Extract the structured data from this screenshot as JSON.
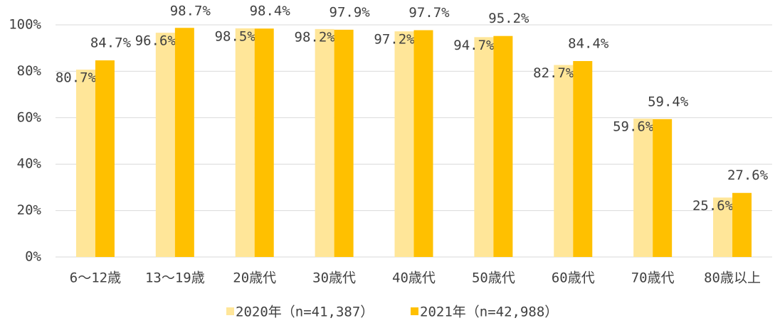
{
  "chart_data": {
    "type": "bar",
    "categories": [
      "6～12歳",
      "13～19歳",
      "20歳代",
      "30歳代",
      "40歳代",
      "50歳代",
      "60歳代",
      "70歳代",
      "80歳以上"
    ],
    "series": [
      {
        "name": "2020年（n=41,387）",
        "color": "#ffe699",
        "values": [
          80.7,
          96.6,
          98.5,
          98.2,
          97.2,
          94.7,
          82.7,
          59.6,
          25.6
        ],
        "value_labels": [
          "80.7%",
          "96.6%",
          "98.5%",
          "98.2%",
          "97.2%",
          "94.7%",
          "82.7%",
          "59.6%",
          "25.6%"
        ]
      },
      {
        "name": "2021年（n=42,988）",
        "color": "#ffc000",
        "values": [
          84.7,
          98.7,
          98.4,
          97.9,
          97.7,
          95.2,
          84.4,
          59.4,
          27.6
        ],
        "value_labels": [
          "84.7%",
          "98.7%",
          "98.4%",
          "97.9%",
          "97.7%",
          "95.2%",
          "84.4%",
          "59.4%",
          "27.6%"
        ]
      }
    ],
    "ylim": [
      0,
      100
    ],
    "yticks": [
      {
        "value": 0,
        "label": "0%"
      },
      {
        "value": 20,
        "label": "20%"
      },
      {
        "value": 40,
        "label": "40%"
      },
      {
        "value": 60,
        "label": "60%"
      },
      {
        "value": 80,
        "label": "80%"
      },
      {
        "value": 100,
        "label": "100%"
      }
    ],
    "grid": true,
    "legend": "bottom"
  }
}
